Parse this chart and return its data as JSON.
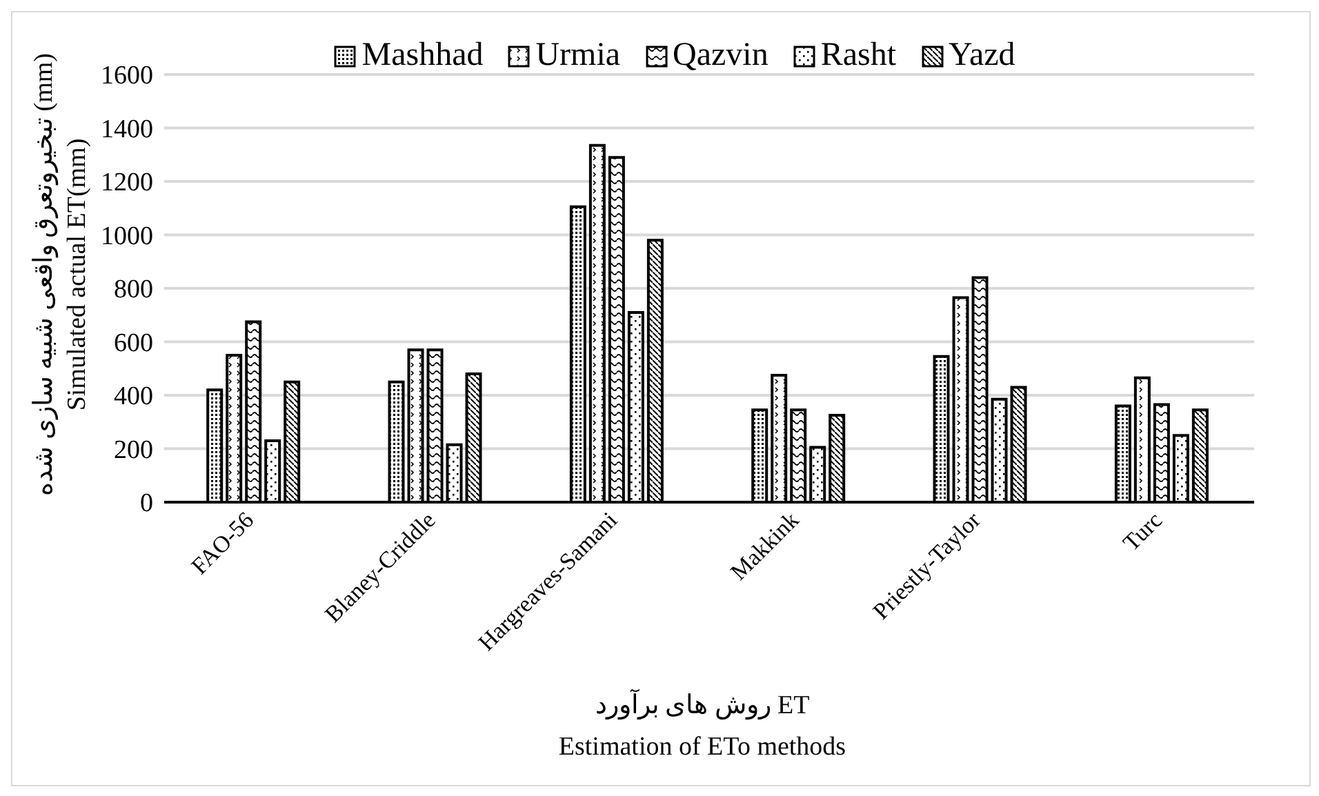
{
  "chart_data": {
    "type": "bar",
    "ylabel": "تبخیروتعرق واقعی شبیه سازی شده (mm)\nSimulated actual ET(mm)",
    "xlabel": "روش های برآورد ET\nEstimation of ETo methods",
    "categories": [
      "FAO-56",
      "Blaney-Criddle",
      "Hargreaves-Samani",
      "Makkink",
      "Priestly-Taylor",
      "Turc"
    ],
    "series": [
      {
        "name": "Mashhad",
        "color": "#000000",
        "values": [
          420,
          450,
          1105,
          345,
          545,
          360
        ]
      },
      {
        "name": "Urmia",
        "color": "#000000",
        "values": [
          550,
          570,
          1335,
          475,
          765,
          465
        ]
      },
      {
        "name": "Qazvin",
        "color": "#000000",
        "values": [
          675,
          570,
          1290,
          345,
          840,
          365
        ]
      },
      {
        "name": "Rasht",
        "color": "#000000",
        "values": [
          230,
          215,
          710,
          205,
          385,
          250
        ]
      },
      {
        "name": "Yazd",
        "color": "#000000",
        "values": [
          450,
          480,
          980,
          325,
          430,
          345
        ]
      }
    ],
    "ylim": [
      0,
      1600
    ],
    "yticks": [
      0,
      200,
      400,
      600,
      800,
      1000,
      1200,
      1400,
      1600
    ],
    "grid": "y",
    "legend": "top"
  }
}
